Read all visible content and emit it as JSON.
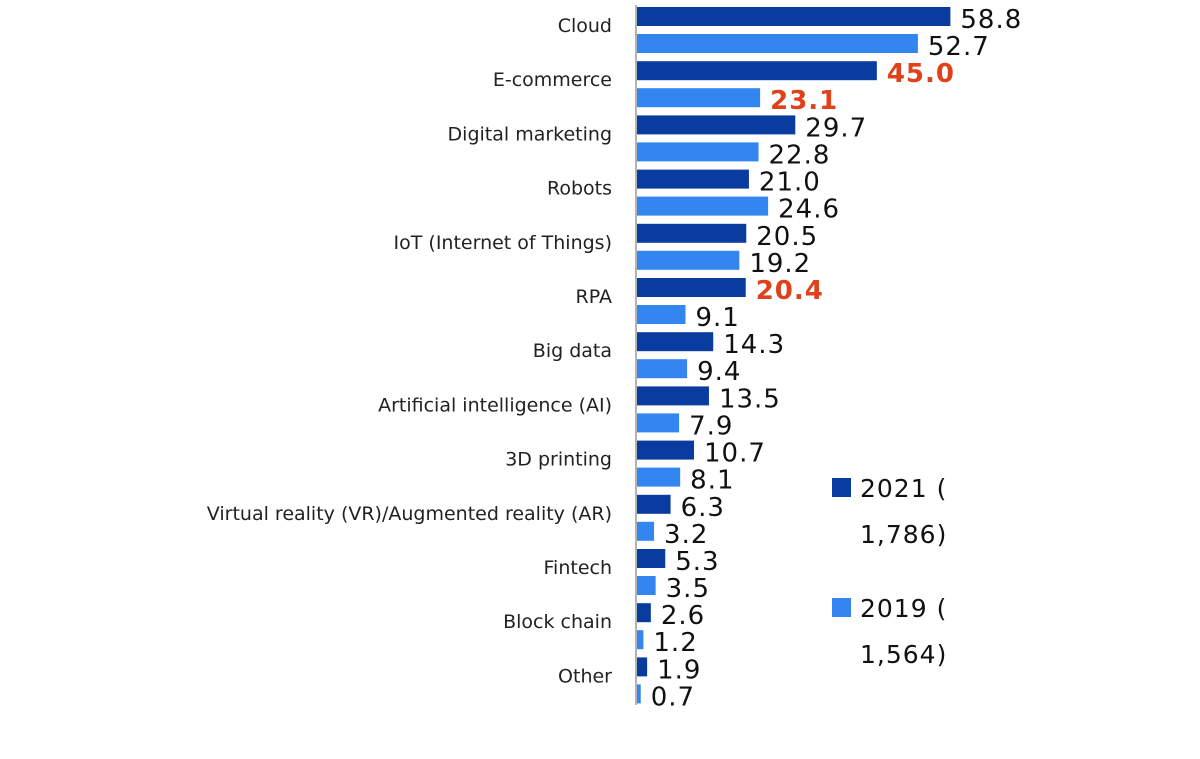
{
  "chart_data": {
    "type": "bar",
    "orientation": "horizontal",
    "categories": [
      "Cloud",
      "E-commerce",
      "Digital marketing",
      "Robots",
      "IoT (Internet of Things)",
      "RPA",
      "Big data",
      "Artificial intelligence (AI)",
      "3D printing",
      "Virtual reality (VR)/Augmented reality (AR)",
      "Fintech",
      "Block chain",
      "Other"
    ],
    "series": [
      {
        "name": "2021",
        "color": "#0a3ca0",
        "values": [
          58.8,
          45.0,
          29.7,
          21.0,
          20.5,
          20.4,
          14.3,
          13.5,
          10.7,
          6.3,
          5.3,
          2.6,
          1.9
        ],
        "labels": [
          "58.8",
          "45.0",
          "29.7",
          "21.0",
          "20.5",
          "20.4",
          "14.3",
          "13.5",
          "10.7",
          "6.3",
          "5.3",
          "2.6",
          "1.9"
        ]
      },
      {
        "name": "2019",
        "color": "#3385f0",
        "values": [
          52.7,
          23.1,
          22.8,
          24.6,
          19.2,
          9.1,
          9.4,
          7.9,
          8.1,
          3.2,
          3.5,
          1.2,
          0.7
        ],
        "labels": [
          "52.7",
          "23.1",
          "22.8",
          "24.6",
          "19.2",
          "9.1",
          "9.4",
          "7.9",
          "8.1",
          "3.2",
          "3.5",
          "1.2",
          "0.7"
        ]
      }
    ],
    "highlighted_labels": [
      {
        "series": 0,
        "category": "E-commerce"
      },
      {
        "series": 1,
        "category": "E-commerce"
      },
      {
        "series": 0,
        "category": "RPA"
      }
    ],
    "highlight_color": "#e0401a",
    "legend": [
      {
        "series": 0,
        "line1": "2021 (",
        "line2": "1,786)"
      },
      {
        "series": 1,
        "line1": "2019 (",
        "line2": "1,564)"
      }
    ],
    "legend_position": "right",
    "xlim": [
      0,
      60
    ],
    "grid": false
  }
}
